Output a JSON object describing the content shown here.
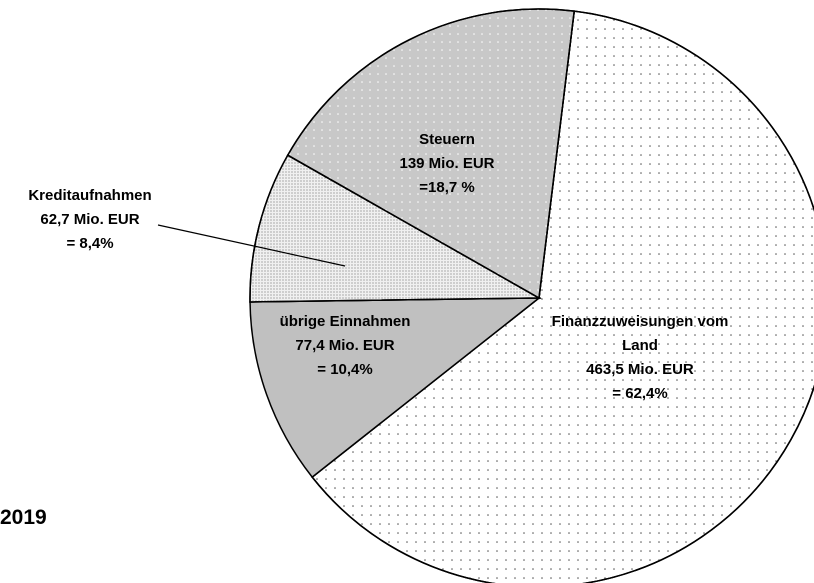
{
  "chart_data": {
    "type": "pie",
    "title": "2019",
    "categories": [
      "Finanzzuweisungen vom Land",
      "übrige Einnahmen",
      "Kreditaufnahmen",
      "Steuern"
    ],
    "values": [
      463.5,
      77.4,
      62.7,
      139
    ],
    "value_labels": [
      "463,5 Mio. EUR",
      "77,4 Mio. EUR",
      "62,7 Mio. EUR",
      "139 Mio. EUR"
    ],
    "percentages": [
      62.4,
      10.4,
      8.4,
      18.7
    ],
    "percent_labels": [
      "= 62,4%",
      "= 10,4%",
      "= 8,4%",
      "=18,7 %"
    ],
    "colors": [
      "#ffffff",
      "#c0c0c0",
      "#f0f0f0",
      "#c8c8c8"
    ],
    "patterns": [
      "sparse-dots",
      "none",
      "dense-dots",
      "dots"
    ]
  }
}
